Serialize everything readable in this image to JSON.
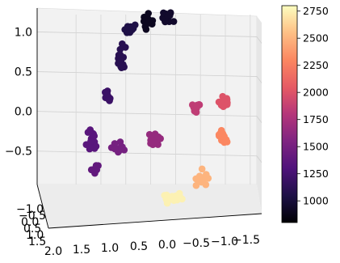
{
  "chart_data": {
    "type": "scatter",
    "projection": "3d",
    "title": "",
    "xlabel": "",
    "ylabel": "",
    "zlabel": "",
    "grid": true,
    "colormap": "magma",
    "x_ticks": [
      "2.0",
      "1.5",
      "1.0",
      "0.5",
      "0.0",
      "−0.5",
      "−1.0",
      "−1.5"
    ],
    "y_ticks": [
      "−1.0",
      "−0.5",
      "0.0",
      "0.5",
      "1.0",
      "1.5"
    ],
    "z_ticks": [
      "−0.5",
      "0.0",
      "0.5",
      "1.0"
    ],
    "xlim": [
      -1.6,
      2.1
    ],
    "zlim": [
      -0.9,
      1.3
    ],
    "colorbar": {
      "range": [
        800,
        2800
      ],
      "ticks": [
        "1000",
        "1250",
        "1500",
        "1750",
        "2000",
        "2250",
        "2500",
        "2750"
      ]
    },
    "clusters": [
      {
        "x": 0.55,
        "z": 1.15,
        "value": 900,
        "n": 14,
        "spread": [
          0.08,
          0.06
        ]
      },
      {
        "x": 0.15,
        "z": 1.2,
        "value": 950,
        "n": 16,
        "spread": [
          0.08,
          0.05
        ]
      },
      {
        "x": 0.9,
        "z": 1.05,
        "value": 1050,
        "n": 14,
        "spread": [
          0.08,
          0.05
        ]
      },
      {
        "x": 1.1,
        "z": 0.65,
        "value": 1100,
        "n": 18,
        "spread": [
          0.06,
          0.12
        ]
      },
      {
        "x": 1.35,
        "z": 0.2,
        "value": 1200,
        "n": 10,
        "spread": [
          0.05,
          0.06
        ]
      },
      {
        "x": 1.7,
        "z": -0.35,
        "value": 1350,
        "n": 18,
        "spread": [
          0.07,
          0.1
        ]
      },
      {
        "x": 1.6,
        "z": -0.75,
        "value": 1400,
        "n": 10,
        "spread": [
          0.05,
          0.05
        ]
      },
      {
        "x": 1.15,
        "z": -0.45,
        "value": 1500,
        "n": 16,
        "spread": [
          0.1,
          0.05
        ]
      },
      {
        "x": 0.4,
        "z": -0.35,
        "value": 1650,
        "n": 14,
        "spread": [
          0.1,
          0.05
        ]
      },
      {
        "x": -0.4,
        "z": 0.05,
        "value": 1850,
        "n": 14,
        "spread": [
          0.08,
          0.05
        ]
      },
      {
        "x": -0.95,
        "z": 0.1,
        "value": 2000,
        "n": 18,
        "spread": [
          0.08,
          0.07
        ]
      },
      {
        "x": -0.95,
        "z": -0.35,
        "value": 2300,
        "n": 14,
        "spread": [
          0.06,
          0.07
        ]
      },
      {
        "x": -0.55,
        "z": -0.85,
        "value": 2500,
        "n": 14,
        "spread": [
          0.08,
          0.07
        ]
      },
      {
        "x": 0.05,
        "z": -1.1,
        "value": 2750,
        "n": 20,
        "spread": [
          0.12,
          0.05
        ]
      }
    ]
  }
}
